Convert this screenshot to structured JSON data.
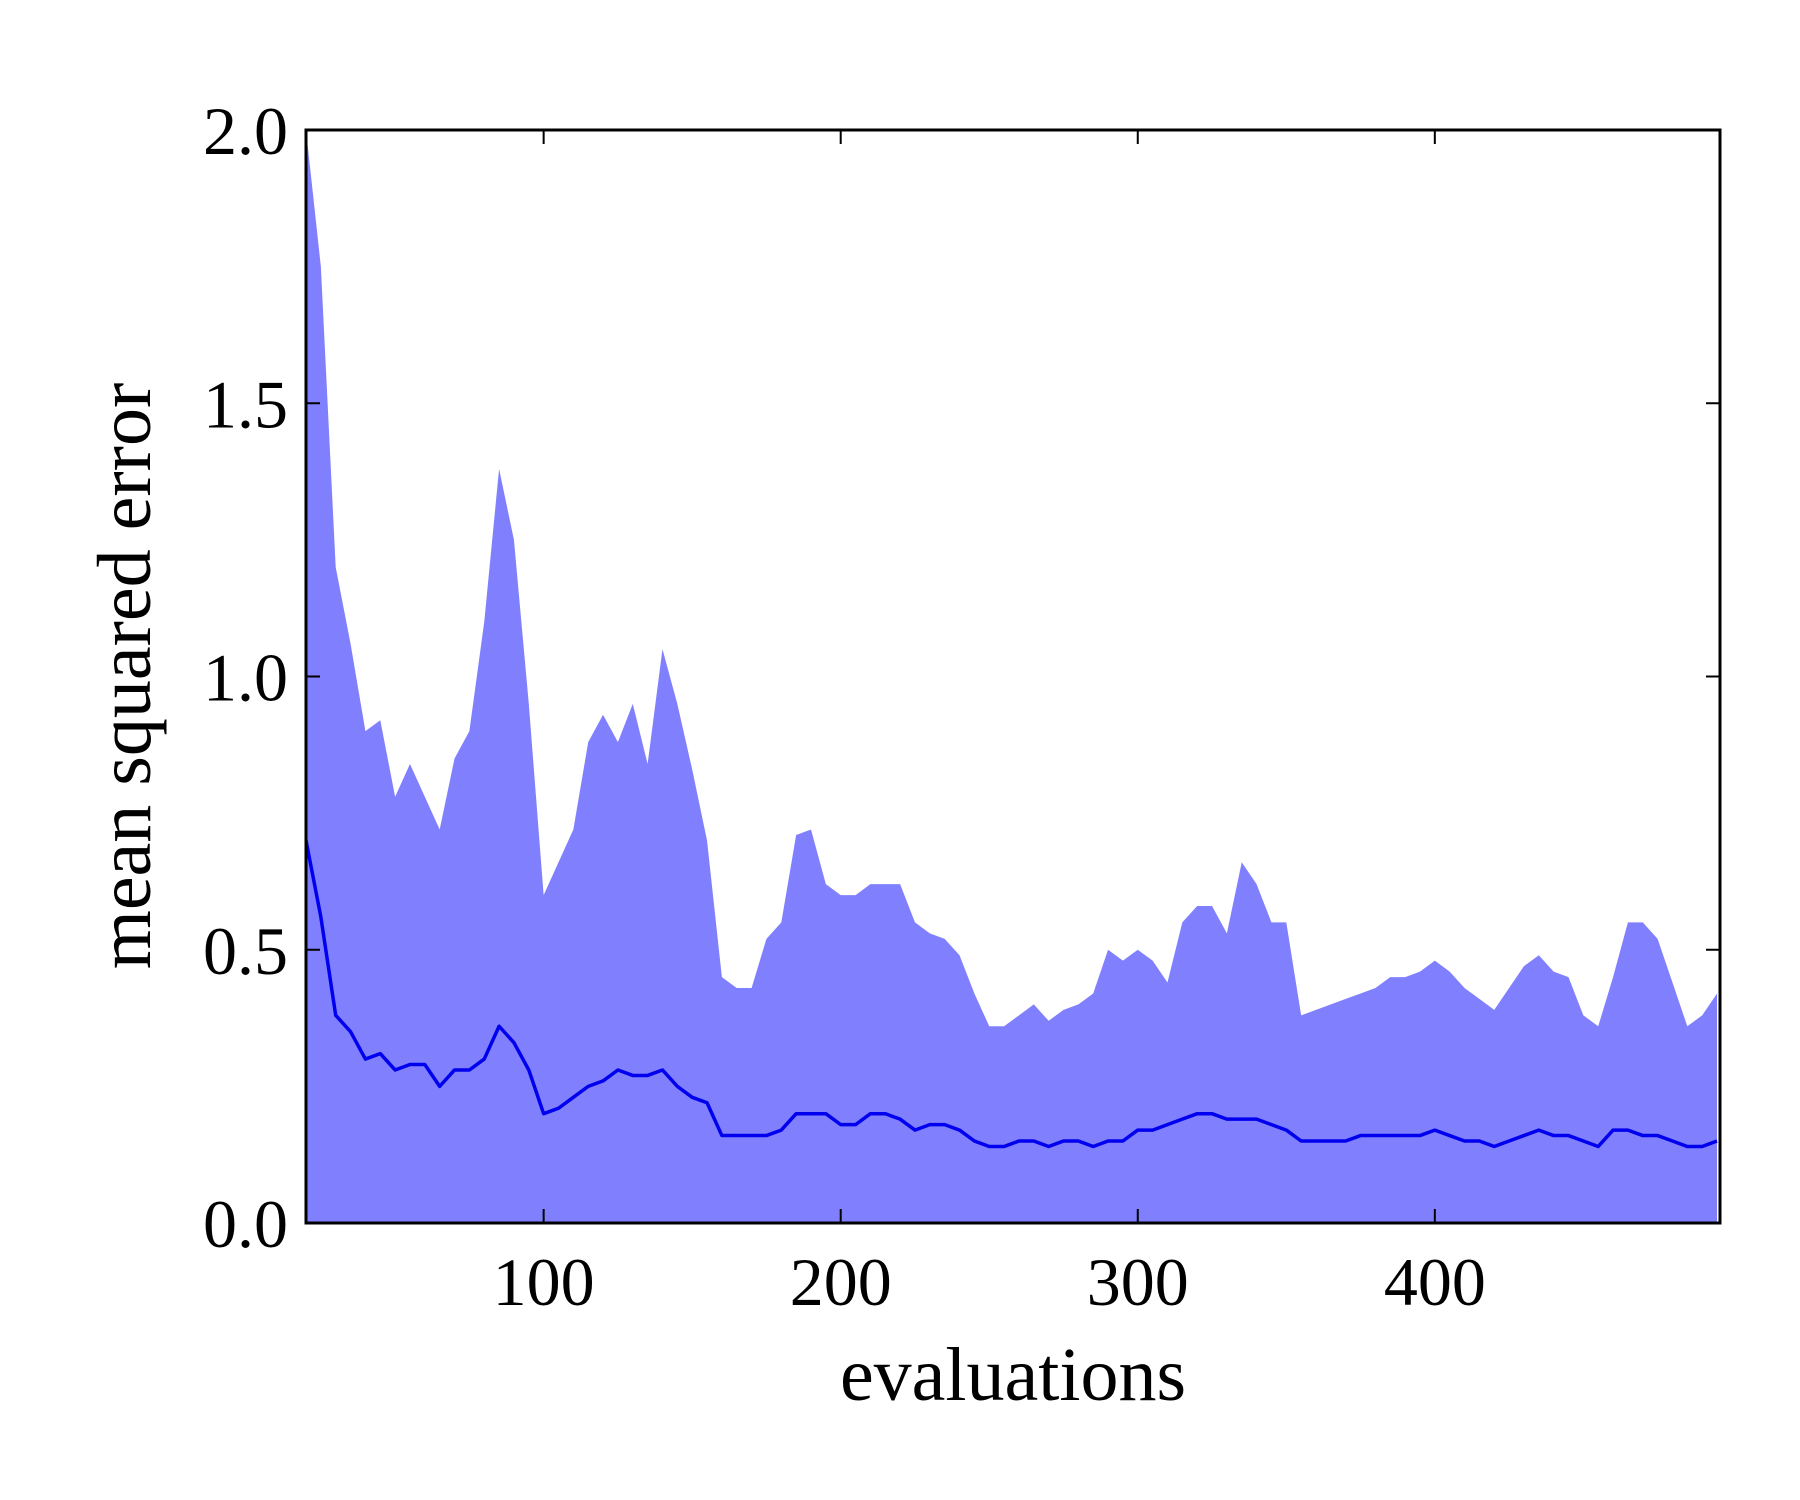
{
  "chart_data": {
    "type": "area-line",
    "xlabel": "evaluations",
    "ylabel": "mean squared error",
    "xlim": [
      20,
      496
    ],
    "xticks": [
      100,
      200,
      300,
      400
    ],
    "ylim": [
      0,
      2
    ],
    "yticks": [
      {
        "value": 0,
        "label": "0.0"
      },
      0.5,
      {
        "value": 1,
        "label": "1.0"
      },
      1.5,
      {
        "value": 2,
        "label": "2.0"
      }
    ],
    "x": [
      20,
      25,
      30,
      35,
      40,
      45,
      50,
      55,
      60,
      65,
      70,
      75,
      80,
      85,
      90,
      95,
      100,
      105,
      110,
      115,
      120,
      125,
      130,
      135,
      140,
      145,
      150,
      155,
      160,
      165,
      170,
      175,
      180,
      185,
      190,
      195,
      200,
      205,
      210,
      215,
      220,
      225,
      230,
      235,
      240,
      245,
      250,
      255,
      260,
      265,
      270,
      275,
      280,
      285,
      290,
      295,
      300,
      305,
      310,
      315,
      320,
      325,
      330,
      335,
      340,
      345,
      350,
      355,
      360,
      365,
      370,
      375,
      380,
      385,
      390,
      395,
      400,
      405,
      410,
      415,
      420,
      425,
      430,
      435,
      440,
      445,
      450,
      455,
      460,
      465,
      470,
      475,
      480,
      485,
      490,
      495
    ],
    "series": [
      {
        "kind": "area",
        "color": "#8080ff",
        "values": [
          2.0,
          1.75,
          1.2,
          1.06,
          0.9,
          0.92,
          0.78,
          0.84,
          0.78,
          0.72,
          0.85,
          0.9,
          1.1,
          1.38,
          1.25,
          0.95,
          0.6,
          0.66,
          0.72,
          0.88,
          0.93,
          0.88,
          0.95,
          0.84,
          1.05,
          0.95,
          0.83,
          0.7,
          0.45,
          0.43,
          0.43,
          0.52,
          0.55,
          0.71,
          0.72,
          0.62,
          0.6,
          0.6,
          0.62,
          0.62,
          0.62,
          0.55,
          0.53,
          0.52,
          0.49,
          0.42,
          0.36,
          0.36,
          0.38,
          0.4,
          0.37,
          0.39,
          0.4,
          0.42,
          0.5,
          0.48,
          0.5,
          0.48,
          0.44,
          0.55,
          0.58,
          0.58,
          0.53,
          0.66,
          0.62,
          0.55,
          0.55,
          0.38,
          0.39,
          0.4,
          0.41,
          0.42,
          0.43,
          0.45,
          0.45,
          0.46,
          0.48,
          0.46,
          0.43,
          0.41,
          0.39,
          0.43,
          0.47,
          0.49,
          0.46,
          0.45,
          0.38,
          0.36,
          0.45,
          0.55,
          0.55,
          0.52,
          0.44,
          0.36,
          0.38,
          0.42
        ]
      },
      {
        "kind": "line",
        "color": "#0000ee",
        "values": [
          0.7,
          0.56,
          0.38,
          0.35,
          0.3,
          0.31,
          0.28,
          0.29,
          0.29,
          0.25,
          0.28,
          0.28,
          0.3,
          0.36,
          0.33,
          0.28,
          0.2,
          0.21,
          0.23,
          0.25,
          0.26,
          0.28,
          0.27,
          0.27,
          0.28,
          0.25,
          0.23,
          0.22,
          0.16,
          0.16,
          0.16,
          0.16,
          0.17,
          0.2,
          0.2,
          0.2,
          0.18,
          0.18,
          0.2,
          0.2,
          0.19,
          0.17,
          0.18,
          0.18,
          0.17,
          0.15,
          0.14,
          0.14,
          0.15,
          0.15,
          0.14,
          0.15,
          0.15,
          0.14,
          0.15,
          0.15,
          0.17,
          0.17,
          0.18,
          0.19,
          0.2,
          0.2,
          0.19,
          0.19,
          0.19,
          0.18,
          0.17,
          0.15,
          0.15,
          0.15,
          0.15,
          0.16,
          0.16,
          0.16,
          0.16,
          0.16,
          0.17,
          0.16,
          0.15,
          0.15,
          0.14,
          0.15,
          0.16,
          0.17,
          0.16,
          0.16,
          0.15,
          0.14,
          0.17,
          0.17,
          0.16,
          0.16,
          0.15,
          0.14,
          0.14,
          0.15
        ]
      }
    ]
  }
}
